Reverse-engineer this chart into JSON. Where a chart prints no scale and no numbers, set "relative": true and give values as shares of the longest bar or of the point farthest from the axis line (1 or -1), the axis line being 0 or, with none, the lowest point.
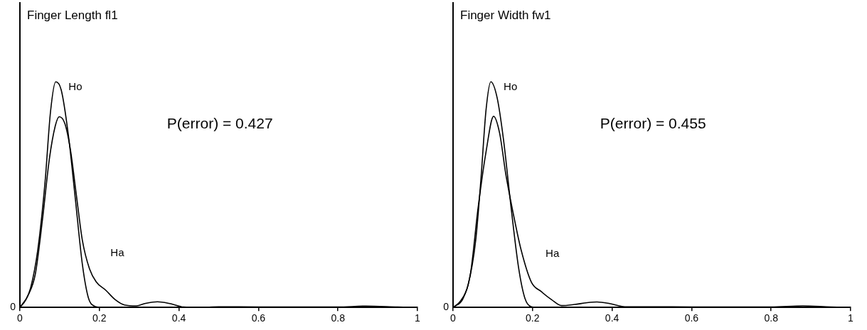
{
  "chart_data": [
    {
      "type": "line",
      "title": "Finger Length fl1",
      "relative": true,
      "xlim": [
        0,
        1
      ],
      "xticks": [
        0,
        0.2,
        0.4,
        0.6,
        0.8,
        1
      ],
      "grid": false,
      "legend": false,
      "marker": "none",
      "line_style": "solid",
      "annotations": [
        "P(error) = 0.427",
        {
          "text": "0",
          "x": 0,
          "y": 0
        }
      ],
      "series": [
        {
          "name": "Ho",
          "color": "#000000",
          "x": [
            0,
            0.015,
            0.027,
            0.045,
            0.063,
            0.077,
            0.09,
            0.104,
            0.122,
            0.139,
            0.157,
            0.172,
            0.186,
            0.204,
            0.3,
            0.5,
            0.7,
            1
          ],
          "values": [
            0,
            0.034,
            0.087,
            0.256,
            0.551,
            0.868,
            1,
            0.963,
            0.762,
            0.488,
            0.192,
            0.044,
            0.007,
            0,
            0,
            0,
            0,
            0
          ]
        },
        {
          "name": "Ha",
          "color": "#000000",
          "x": [
            0,
            0.021,
            0.039,
            0.057,
            0.074,
            0.089,
            0.099,
            0.113,
            0.127,
            0.142,
            0.157,
            0.175,
            0.192,
            0.216,
            0.24,
            0.263,
            0.293,
            0.316,
            0.346,
            0.375,
            0.411,
            0.452,
            0.5,
            0.6,
            0.8,
            0.87,
            0.95,
            1
          ],
          "values": [
            0,
            0.055,
            0.15,
            0.393,
            0.657,
            0.805,
            0.845,
            0.815,
            0.699,
            0.498,
            0.298,
            0.171,
            0.113,
            0.076,
            0.034,
            0.011,
            0.007,
            0.018,
            0.025,
            0.018,
            0.002,
            0,
            0.003,
            0.002,
            0.002,
            0.006,
            0.002,
            0
          ]
        }
      ]
    },
    {
      "type": "line",
      "title": "Finger Width fw1",
      "relative": true,
      "xlim": [
        0,
        1
      ],
      "xticks": [
        0,
        0.2,
        0.4,
        0.6,
        0.8,
        1
      ],
      "grid": false,
      "legend": false,
      "marker": "none",
      "line_style": "solid",
      "annotations": [
        "P(error) = 0.455",
        {
          "text": "0",
          "x": 0,
          "y": 0
        }
      ],
      "series": [
        {
          "name": "Ho",
          "color": "#000000",
          "x": [
            0,
            0.019,
            0.038,
            0.057,
            0.07,
            0.083,
            0.095,
            0.111,
            0.127,
            0.146,
            0.165,
            0.181,
            0.197,
            0.22,
            0.4,
            0.7,
            1
          ],
          "values": [
            0,
            0.029,
            0.101,
            0.298,
            0.566,
            0.876,
            1,
            0.928,
            0.742,
            0.442,
            0.174,
            0.039,
            0.003,
            0,
            0,
            0,
            0
          ]
        },
        {
          "name": "Ha",
          "color": "#000000",
          "x": [
            0,
            0.025,
            0.044,
            0.063,
            0.083,
            0.102,
            0.117,
            0.133,
            0.152,
            0.171,
            0.197,
            0.222,
            0.248,
            0.273,
            0.305,
            0.337,
            0.362,
            0.394,
            0.432,
            0.5,
            0.6,
            0.8,
            0.88,
            0.95,
            1
          ],
          "values": [
            0,
            0.039,
            0.153,
            0.442,
            0.69,
            0.847,
            0.773,
            0.587,
            0.411,
            0.256,
            0.112,
            0.07,
            0.034,
            0.008,
            0.013,
            0.021,
            0.024,
            0.017,
            0.003,
            0.003,
            0.002,
            0.002,
            0.007,
            0.002,
            0
          ]
        }
      ]
    }
  ]
}
